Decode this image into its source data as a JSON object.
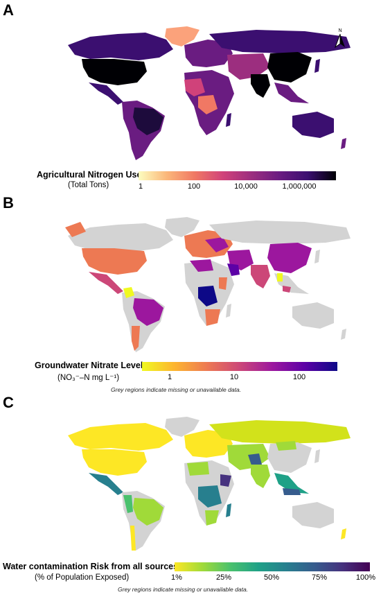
{
  "panels": [
    {
      "letter": "A",
      "legend_title": "Agricultural Nitrogen Use",
      "legend_subtitle": "(Total Tons)",
      "legend_ticks": [
        "1",
        "100",
        "10,000",
        "1,000,000"
      ],
      "scale": "log",
      "colors": [
        "#fcfdbf",
        "#fbb77a",
        "#f07864",
        "#d0427a",
        "#9c2e7f",
        "#6a1c81",
        "#3b0f70",
        "#000004"
      ],
      "note": ""
    },
    {
      "letter": "B",
      "legend_title": "Groundwater Nitrate Level",
      "legend_subtitle": "(NO₃⁻–N mg L⁻¹)",
      "legend_ticks": [
        "1",
        "10",
        "100"
      ],
      "scale": "log",
      "colors": [
        "#f0f921",
        "#fdb42f",
        "#ed7953",
        "#cc4778",
        "#9c179e",
        "#5c01a6",
        "#0d0887"
      ],
      "missing_color": "#d3d3d3",
      "note": "Grey regions indicate missing or unavailable data."
    },
    {
      "letter": "C",
      "legend_title": "Water contamination Risk from all sources",
      "legend_subtitle": "(% of Population Exposed)",
      "legend_ticks": [
        "1%",
        "25%",
        "50%",
        "75%",
        "100%"
      ],
      "scale": "linear",
      "colors": [
        "#fde725",
        "#a0da39",
        "#4ac16d",
        "#1fa187",
        "#277f8e",
        "#365c8d",
        "#46327e",
        "#440154"
      ],
      "missing_color": "#d3d3d3",
      "note": "Grey regions indicate missing or unavailable data."
    }
  ],
  "compass": {
    "label": "N",
    "icon": "north-arrow-icon"
  }
}
